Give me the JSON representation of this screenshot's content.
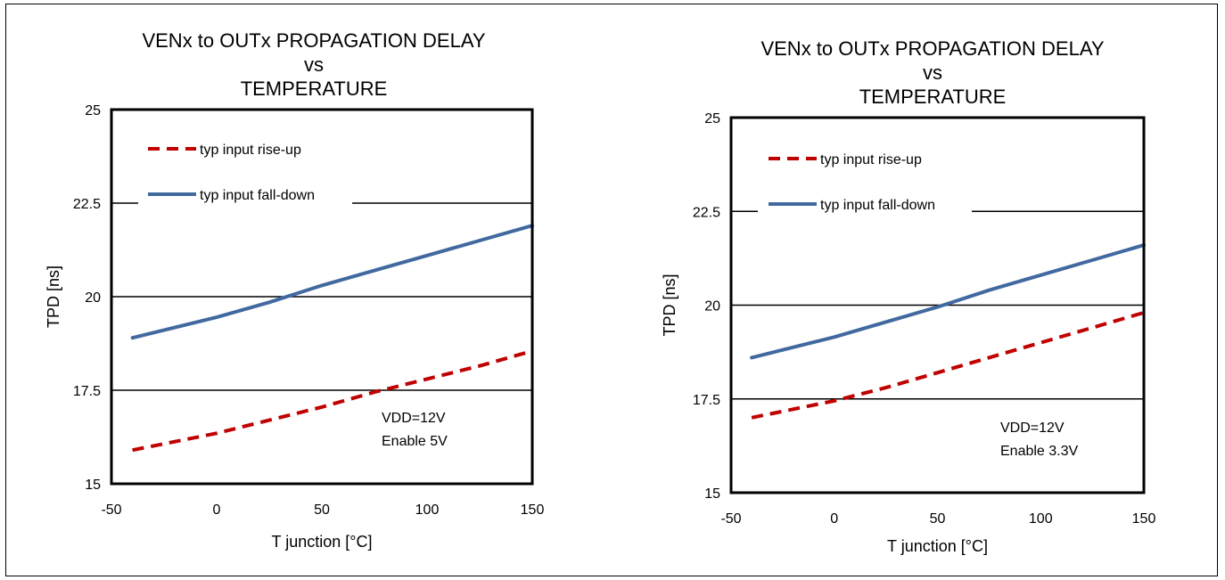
{
  "chart_data": [
    {
      "type": "line",
      "title_lines": [
        "VENx to OUTx PROPAGATION DELAY",
        "vs",
        "TEMPERATURE"
      ],
      "xlabel": "T junction  [°C]",
      "ylabel": "TPD [ns]",
      "xlim": [
        -50,
        150
      ],
      "ylim": [
        15,
        25
      ],
      "xticks": [
        "-50",
        "0",
        "50",
        "100",
        "150"
      ],
      "yticks": [
        "15",
        "17.5",
        "20",
        "22.5",
        "25"
      ],
      "grid": "horizontal",
      "legend_position": "top-left",
      "series": [
        {
          "name": "typ input rise-up",
          "color": "#c00000",
          "style": "dashed",
          "x": [
            -40,
            0,
            25,
            50,
            75,
            100,
            125,
            150
          ],
          "y": [
            15.9,
            16.35,
            16.7,
            17.05,
            17.45,
            17.8,
            18.15,
            18.55
          ]
        },
        {
          "name": "typ input fall-down",
          "color": "#4169a0",
          "style": "solid",
          "x": [
            -40,
            0,
            25,
            50,
            75,
            100,
            125,
            150
          ],
          "y": [
            18.9,
            19.45,
            19.85,
            20.3,
            20.7,
            21.1,
            21.5,
            21.9
          ]
        }
      ],
      "annotations": [
        "VDD=12V",
        "Enable 5V"
      ]
    },
    {
      "type": "line",
      "title_lines": [
        "VENx to OUTx PROPAGATION DELAY",
        "vs",
        "TEMPERATURE"
      ],
      "xlabel": "T junction  [°C]",
      "ylabel": "TPD [ns]",
      "xlim": [
        -50,
        150
      ],
      "ylim": [
        15,
        25
      ],
      "xticks": [
        "-50",
        "0",
        "50",
        "100",
        "150"
      ],
      "yticks": [
        "15",
        "17.5",
        "20",
        "22.5",
        "25"
      ],
      "grid": "horizontal",
      "legend_position": "top-left",
      "series": [
        {
          "name": "typ input rise-up",
          "color": "#c00000",
          "style": "dashed",
          "x": [
            -40,
            0,
            25,
            50,
            75,
            100,
            125,
            150
          ],
          "y": [
            17.0,
            17.45,
            17.8,
            18.2,
            18.6,
            19.0,
            19.4,
            19.8
          ]
        },
        {
          "name": "typ input fall-down",
          "color": "#4169a0",
          "style": "solid",
          "x": [
            -40,
            0,
            25,
            50,
            75,
            100,
            125,
            150
          ],
          "y": [
            18.6,
            19.15,
            19.55,
            19.95,
            20.4,
            20.8,
            21.2,
            21.6
          ]
        }
      ],
      "annotations": [
        "VDD=12V",
        "Enable 3.3V"
      ]
    }
  ]
}
